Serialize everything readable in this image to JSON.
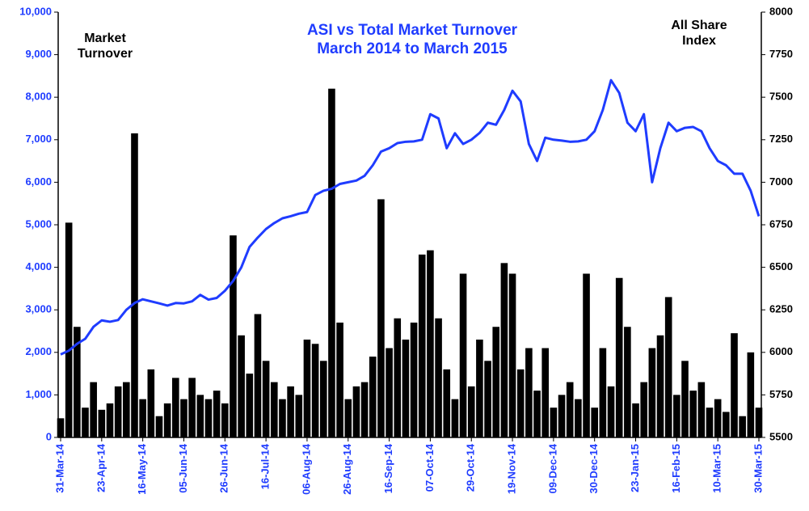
{
  "chart_data": {
    "type": "bar",
    "title": "ASI vs Total Market Turnover",
    "subtitle": "March 2014 to March 2015",
    "categories": [
      "31-Mar-14",
      null,
      null,
      null,
      null,
      "23-Apr-14",
      null,
      null,
      null,
      null,
      "16-May-14",
      null,
      null,
      null,
      null,
      "05-Jun-14",
      null,
      null,
      null,
      null,
      "26-Jun-14",
      null,
      null,
      null,
      null,
      "16-Jul-14",
      null,
      null,
      null,
      null,
      "06-Aug-14",
      null,
      null,
      null,
      null,
      "26-Aug-14",
      null,
      null,
      null,
      null,
      "16-Sep-14",
      null,
      null,
      null,
      null,
      "07-Oct-14",
      null,
      null,
      null,
      null,
      "29-Oct-14",
      null,
      null,
      null,
      null,
      "19-Nov-14",
      null,
      null,
      null,
      null,
      "09-Dec-14",
      null,
      null,
      null,
      null,
      "30-Dec-14",
      null,
      null,
      null,
      null,
      "23-Jan-15",
      null,
      null,
      null,
      null,
      "16-Feb-15",
      null,
      null,
      null,
      null,
      "10-Mar-15",
      null,
      null,
      null,
      null,
      "30-Mar-15"
    ],
    "series": [
      {
        "name": "Market Turnover",
        "type": "bar",
        "color": "#000000",
        "values": [
          450,
          5050,
          2600,
          700,
          1300,
          650,
          800,
          1200,
          1300,
          7150,
          900,
          1600,
          500,
          800,
          1400,
          900,
          1400,
          1000,
          900,
          1100,
          800,
          4750,
          2400,
          1500,
          2900,
          1800,
          1300,
          900,
          1200,
          1000,
          2300,
          2200,
          1800,
          8200,
          2700,
          900,
          1200,
          1300,
          1900,
          5600,
          2100,
          2800,
          2300,
          2700,
          4300,
          4400,
          2800,
          1600,
          900,
          3850,
          1200,
          2300,
          1800,
          2600,
          4100,
          3850,
          1600,
          2100,
          1100,
          2100,
          700,
          1000,
          1300,
          900,
          3850,
          700,
          2100,
          1200,
          3750,
          2600,
          800,
          1300,
          2100,
          2400,
          3300,
          1000,
          1800,
          1100,
          1300,
          700,
          900,
          600,
          2450,
          500,
          2000,
          700
        ]
      },
      {
        "name": "All Share Index",
        "type": "line",
        "axis": "y2",
        "color": "#1f3cff",
        "values": [
          5988,
          6010,
          6050,
          6080,
          6150,
          6188,
          6180,
          6190,
          6250,
          6290,
          6312,
          6300,
          6288,
          6275,
          6290,
          6288,
          6300,
          6338,
          6310,
          6320,
          6362,
          6420,
          6500,
          6620,
          6675,
          6725,
          6760,
          6788,
          6800,
          6815,
          6825,
          6925,
          6950,
          6962,
          6990,
          7000,
          7010,
          7038,
          7100,
          7180,
          7200,
          7230,
          7238,
          7240,
          7250,
          7400,
          7375,
          7200,
          7288,
          7225,
          7250,
          7290,
          7350,
          7338,
          7425,
          7538,
          7475,
          7225,
          7125,
          7262,
          7250,
          7245,
          7238,
          7240,
          7250,
          7300,
          7425,
          7600,
          7525,
          7350,
          7300,
          7400,
          7000,
          7200,
          7350,
          7300,
          7320,
          7325,
          7300,
          7200,
          7125,
          7100,
          7050,
          7050,
          6950,
          6800
        ]
      }
    ],
    "ylim": [
      0,
      10000
    ],
    "yticks": [
      0,
      {
        "value": 1000,
        "label": "1,000"
      },
      {
        "value": 2000,
        "label": "2,000"
      },
      {
        "value": 3000,
        "label": "3,000"
      },
      {
        "value": 4000,
        "label": "4,000"
      },
      {
        "value": 5000,
        "label": "5,000"
      },
      {
        "value": 6000,
        "label": "6,000"
      },
      {
        "value": 7000,
        "label": "7,000"
      },
      {
        "value": 8000,
        "label": "8,000"
      },
      {
        "value": 9000,
        "label": "9,000"
      },
      {
        "value": 10000,
        "label": "10,000"
      }
    ],
    "y2lim": [
      5500,
      8000
    ],
    "y2ticks": [
      5500,
      5750,
      6000,
      6250,
      6500,
      6750,
      7000,
      7250,
      7500,
      7750,
      8000
    ],
    "grid": false
  }
}
